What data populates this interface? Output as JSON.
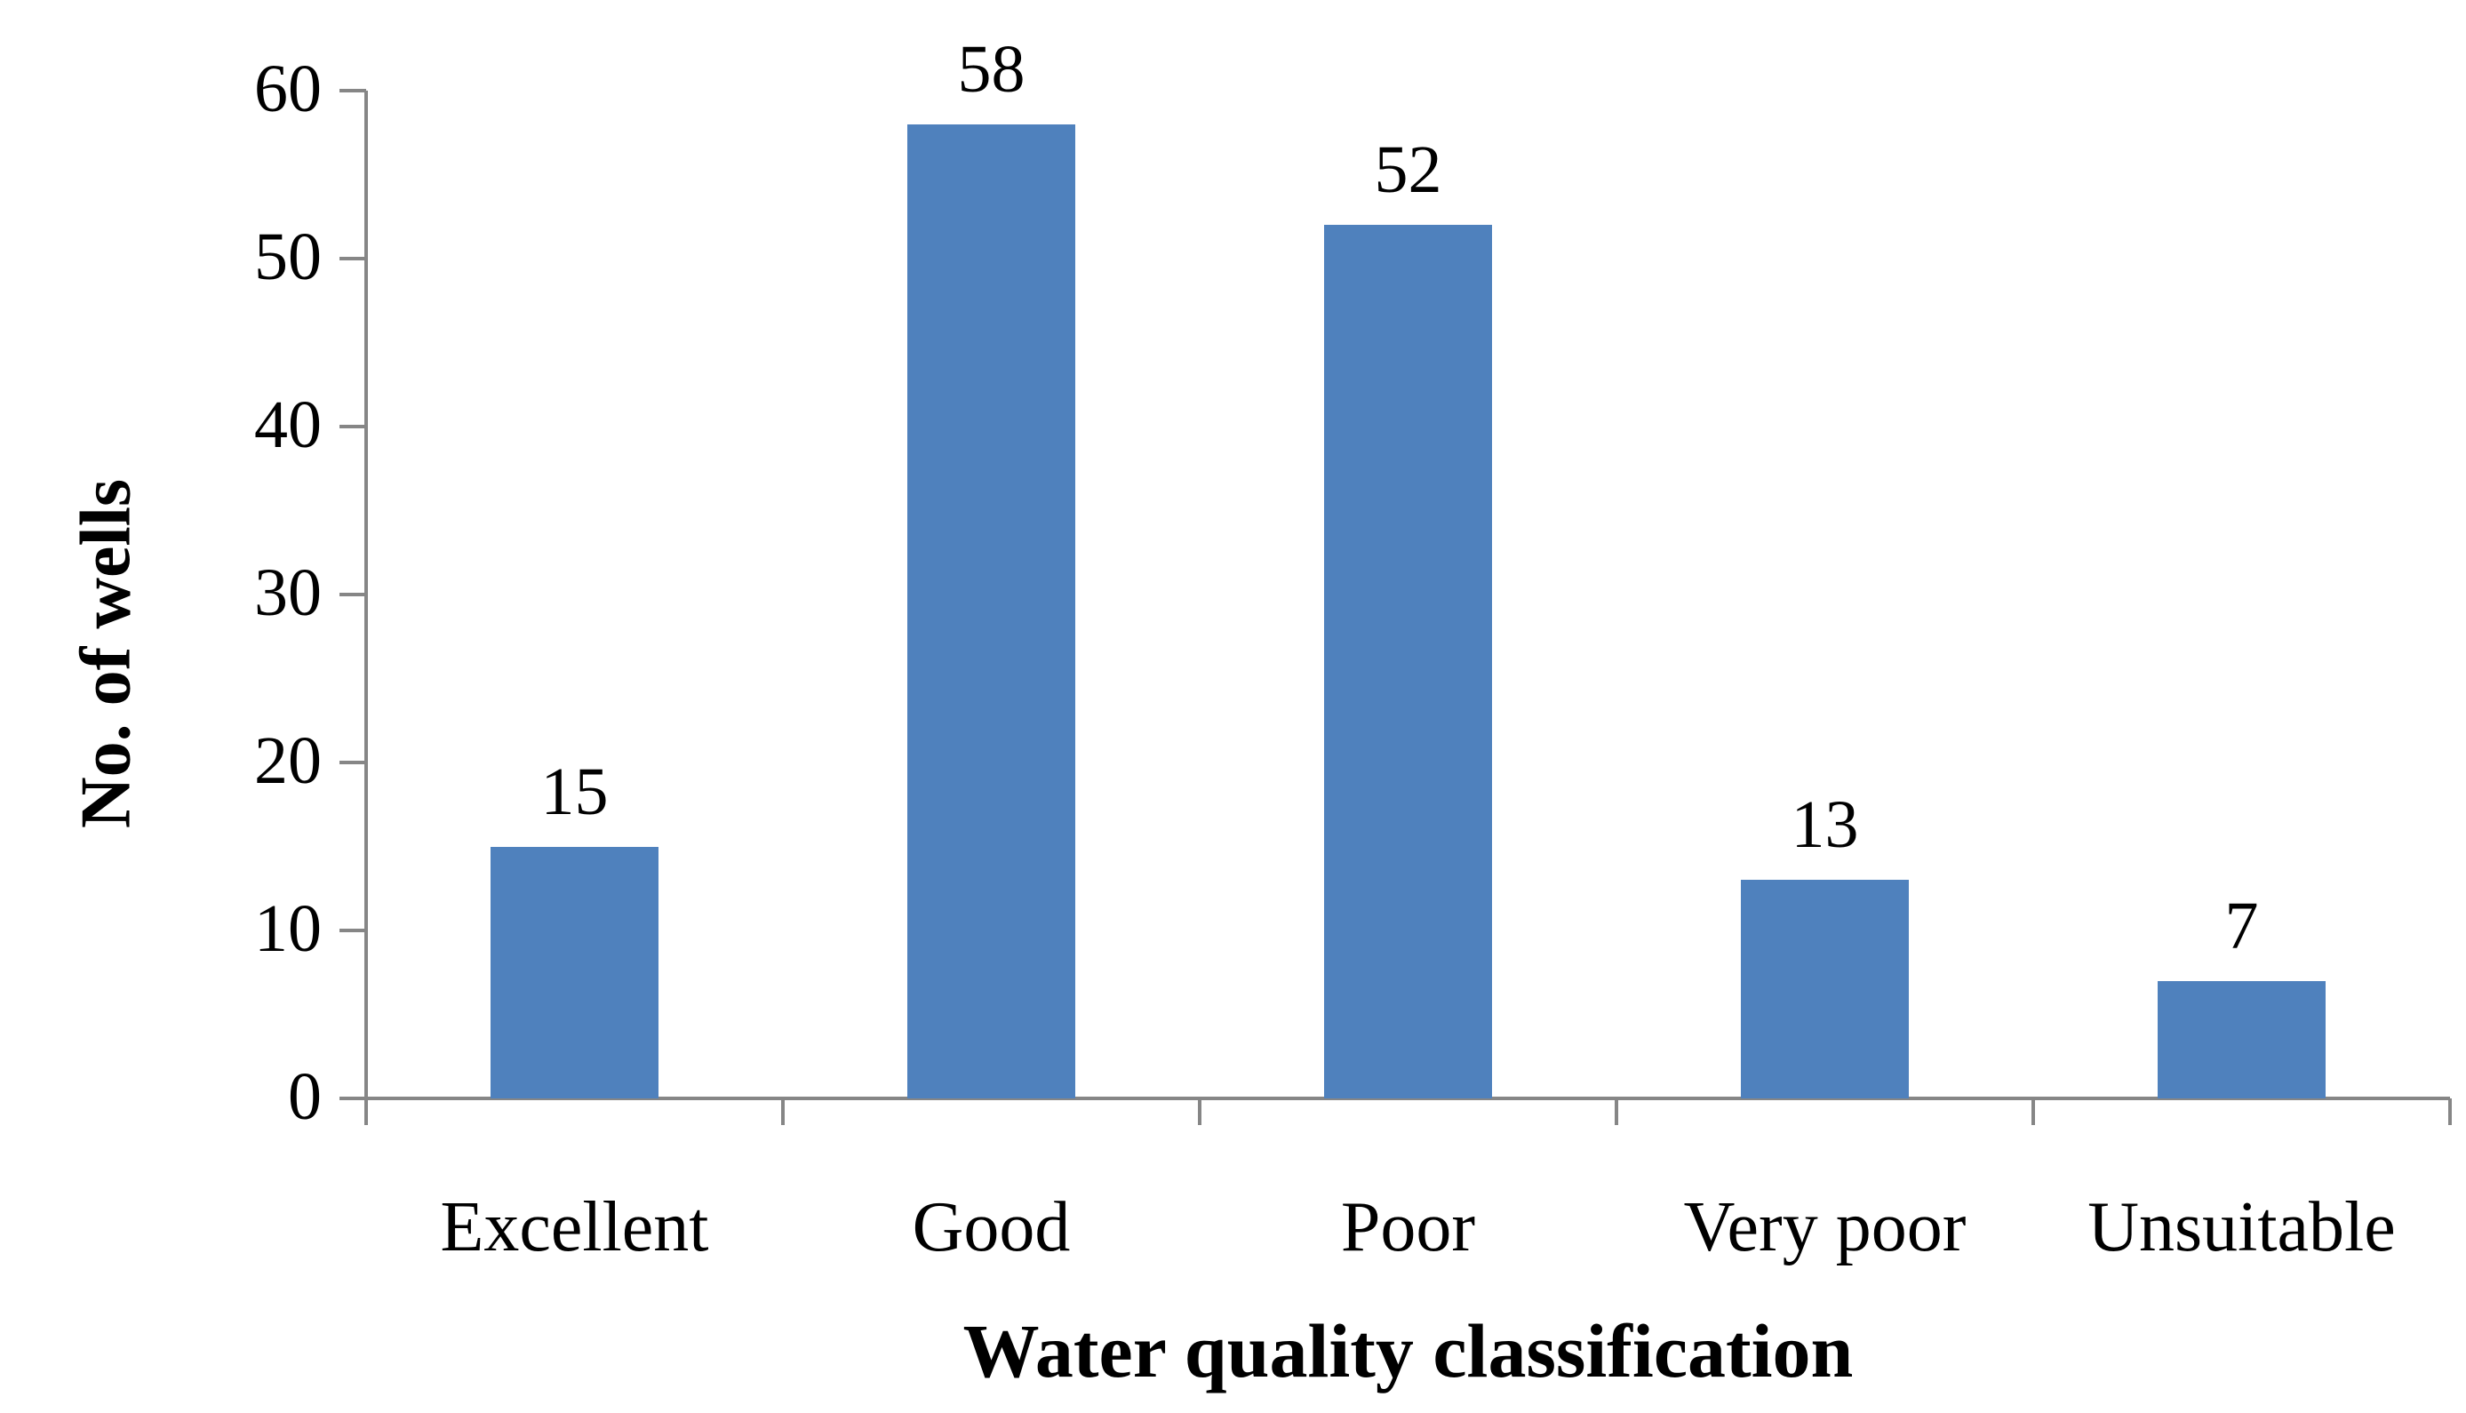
{
  "chart_data": {
    "type": "bar",
    "title": "",
    "xlabel": "Water quality classification",
    "ylabel": "No. of wells",
    "categories": [
      "Excellent",
      "Good",
      "Poor",
      "Very poor",
      "Unsuitable"
    ],
    "values": [
      15,
      58,
      52,
      13,
      7
    ],
    "ylim": [
      0,
      60
    ],
    "yticks": [
      0,
      10,
      20,
      30,
      40,
      50,
      60
    ],
    "grid": false,
    "legend": null,
    "data_labels": true,
    "bar_color": "#4F81BD",
    "axis_color": "#868686"
  }
}
